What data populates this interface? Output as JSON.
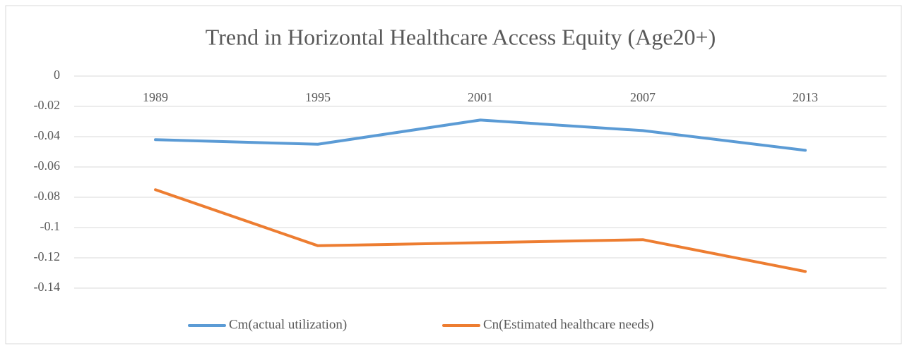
{
  "chart_data": {
    "type": "line",
    "title": "Trend in Horizontal Healthcare Access Equity (Age20+)",
    "categories": [
      "1989",
      "1995",
      "2001",
      "2007",
      "2013"
    ],
    "series": [
      {
        "name": "Cm(actual utilization)",
        "color": "#5b9bd5",
        "values": [
          -0.042,
          -0.045,
          -0.029,
          -0.036,
          -0.049
        ]
      },
      {
        "name": "Cn(Estimated healthcare needs)",
        "color": "#ed7d31",
        "values": [
          -0.075,
          -0.112,
          -0.11,
          -0.108,
          -0.129
        ]
      }
    ],
    "ylim": [
      -0.14,
      0
    ],
    "yticks": [
      0,
      -0.02,
      -0.04,
      -0.06,
      -0.08,
      -0.1,
      -0.12,
      -0.14
    ],
    "grid": true,
    "legend": "bottom"
  }
}
